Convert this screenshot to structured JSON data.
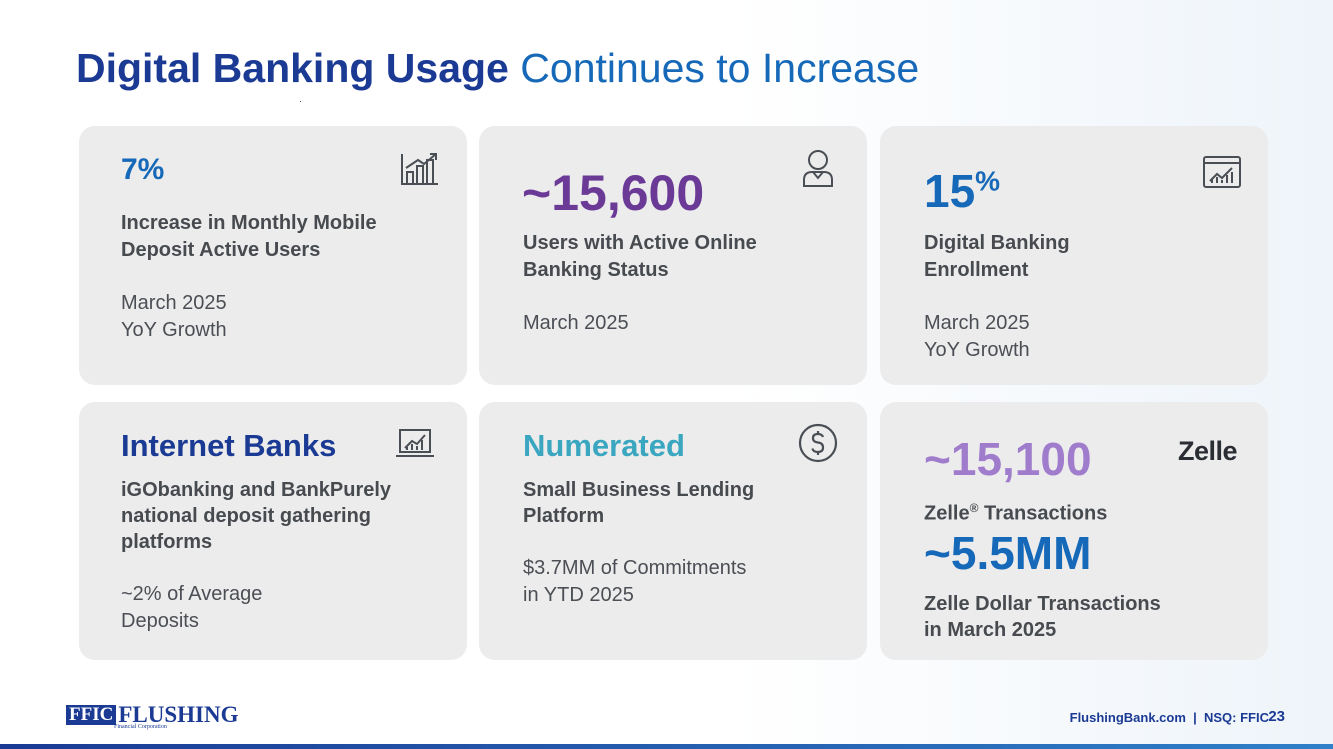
{
  "title": {
    "bold": "Digital Banking Usage",
    "regular": "Continues to Increase"
  },
  "cards": [
    {
      "stat": "7%",
      "label_1": "Increase in Monthly Mobile",
      "label_2": "Deposit Active Users",
      "sub_1": "March 2025",
      "sub_2": "YoY Growth",
      "icon": "bar-chart-growth-icon",
      "stat_color": "#1668b8"
    },
    {
      "stat": "~15,600",
      "label_1": "Users with Active Online",
      "label_2": "Banking Status",
      "sub_1": "March 2025",
      "icon": "user-icon",
      "stat_color": "#6a3a96"
    },
    {
      "stat": "15",
      "stat_suffix": "%",
      "label_1": "Digital Banking",
      "label_2": "Enrollment",
      "sub_1": "March 2025",
      "sub_2": "YoY Growth",
      "icon": "analytics-window-icon",
      "stat_color": "#1668b8"
    },
    {
      "stat": "Internet Banks",
      "label_1": "iGObanking and BankPurely",
      "label_2": "national deposit gathering",
      "label_3": "platforms",
      "sub_1": "~2% of Average",
      "sub_2": "Deposits",
      "icon": "laptop-chart-icon",
      "stat_color": "#1a3a94"
    },
    {
      "stat": "Numerated",
      "label_1": "Small Business Lending",
      "label_2": "Platform",
      "sub_1": "$3.7MM of Commitments",
      "sub_2": "in YTD 2025",
      "icon": "dollar-circle-icon",
      "stat_color": "#3aa6c0"
    },
    {
      "stat": "~15,100",
      "label_1": "Zelle",
      "label_1_sup": "®",
      "label_1_rest": " Transactions",
      "stat2": "~5.5MM",
      "label_2": "Zelle Dollar Transactions",
      "label_3": "in March 2025",
      "logo": "Zelle",
      "stat_color": "#a07ccc",
      "stat2_color": "#1668b8"
    }
  ],
  "footer": {
    "logo_box": "FFIC",
    "logo_word": "FLUSHING",
    "logo_tag": "Financial Corporation",
    "site": "FlushingBank.com  |  NSQ: FFIC",
    "page": "23"
  }
}
